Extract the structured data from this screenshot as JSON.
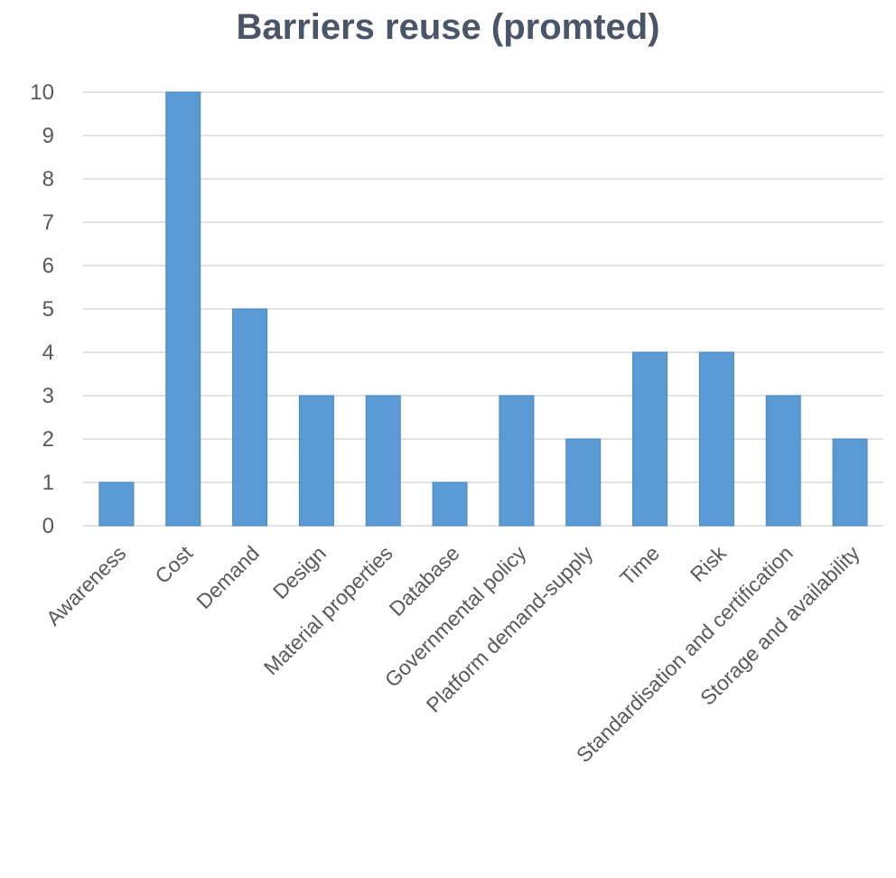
{
  "chart_data": {
    "type": "bar",
    "title": "Barriers reuse (promted)",
    "xlabel": "",
    "ylabel": "",
    "categories": [
      "Awareness",
      "Cost",
      "Demand",
      "Design",
      "Material properties",
      "Database",
      "Governmental policy",
      "Platform demand-supply",
      "Time",
      "Risk",
      "Standardisation and certification",
      "Storage and availability"
    ],
    "values": [
      1,
      10,
      5,
      3,
      3,
      1,
      3,
      2,
      4,
      4,
      3,
      2
    ],
    "ylim": [
      0,
      10
    ],
    "yticks": [
      0,
      1,
      2,
      3,
      4,
      5,
      6,
      7,
      8,
      9,
      10
    ],
    "grid": true,
    "legend": "none",
    "colors": {
      "bar": "#5b9bd5",
      "bar_edge": "#4a86c0",
      "grid": "#d9d9d9",
      "text": "#595959",
      "title": "#4a5568"
    }
  }
}
